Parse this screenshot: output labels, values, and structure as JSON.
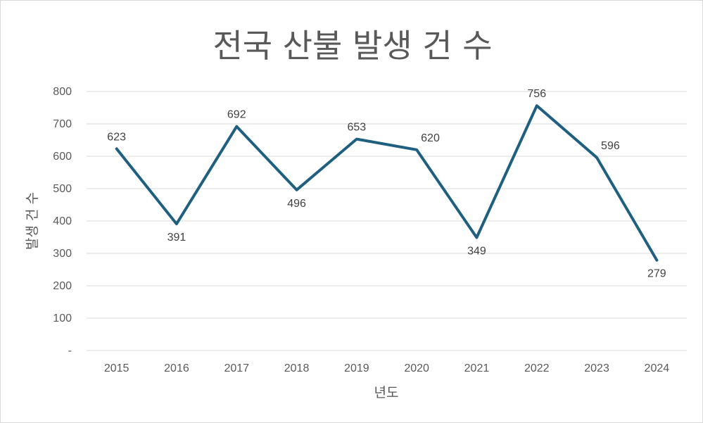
{
  "chart_data": {
    "type": "line",
    "title": "전국 산불 발생 건 수",
    "xlabel": "년도",
    "ylabel": "발생 건 수",
    "categories": [
      "2015",
      "2016",
      "2017",
      "2018",
      "2019",
      "2020",
      "2021",
      "2022",
      "2023",
      "2024"
    ],
    "series": [
      {
        "values": [
          623,
          391,
          692,
          496,
          653,
          620,
          349,
          756,
          596,
          279
        ],
        "color": "#1f5f7f"
      }
    ],
    "ylim": [
      0,
      800
    ],
    "yticks": [
      0,
      100,
      200,
      300,
      400,
      500,
      600,
      700,
      800
    ],
    "ytick_labels": [
      "-",
      "100",
      "200",
      "300",
      "400",
      "500",
      "600",
      "700",
      "800"
    ],
    "data_labels": [
      "623",
      "391",
      "692",
      "496",
      "653",
      "620",
      "349",
      "756",
      "596",
      "279"
    ],
    "label_positions": [
      "above",
      "below",
      "above",
      "below",
      "above",
      "above-right",
      "below",
      "above",
      "above-right",
      "below"
    ],
    "grid": true,
    "gridline_color": "#d9d9d9",
    "text_color": "#595959"
  }
}
